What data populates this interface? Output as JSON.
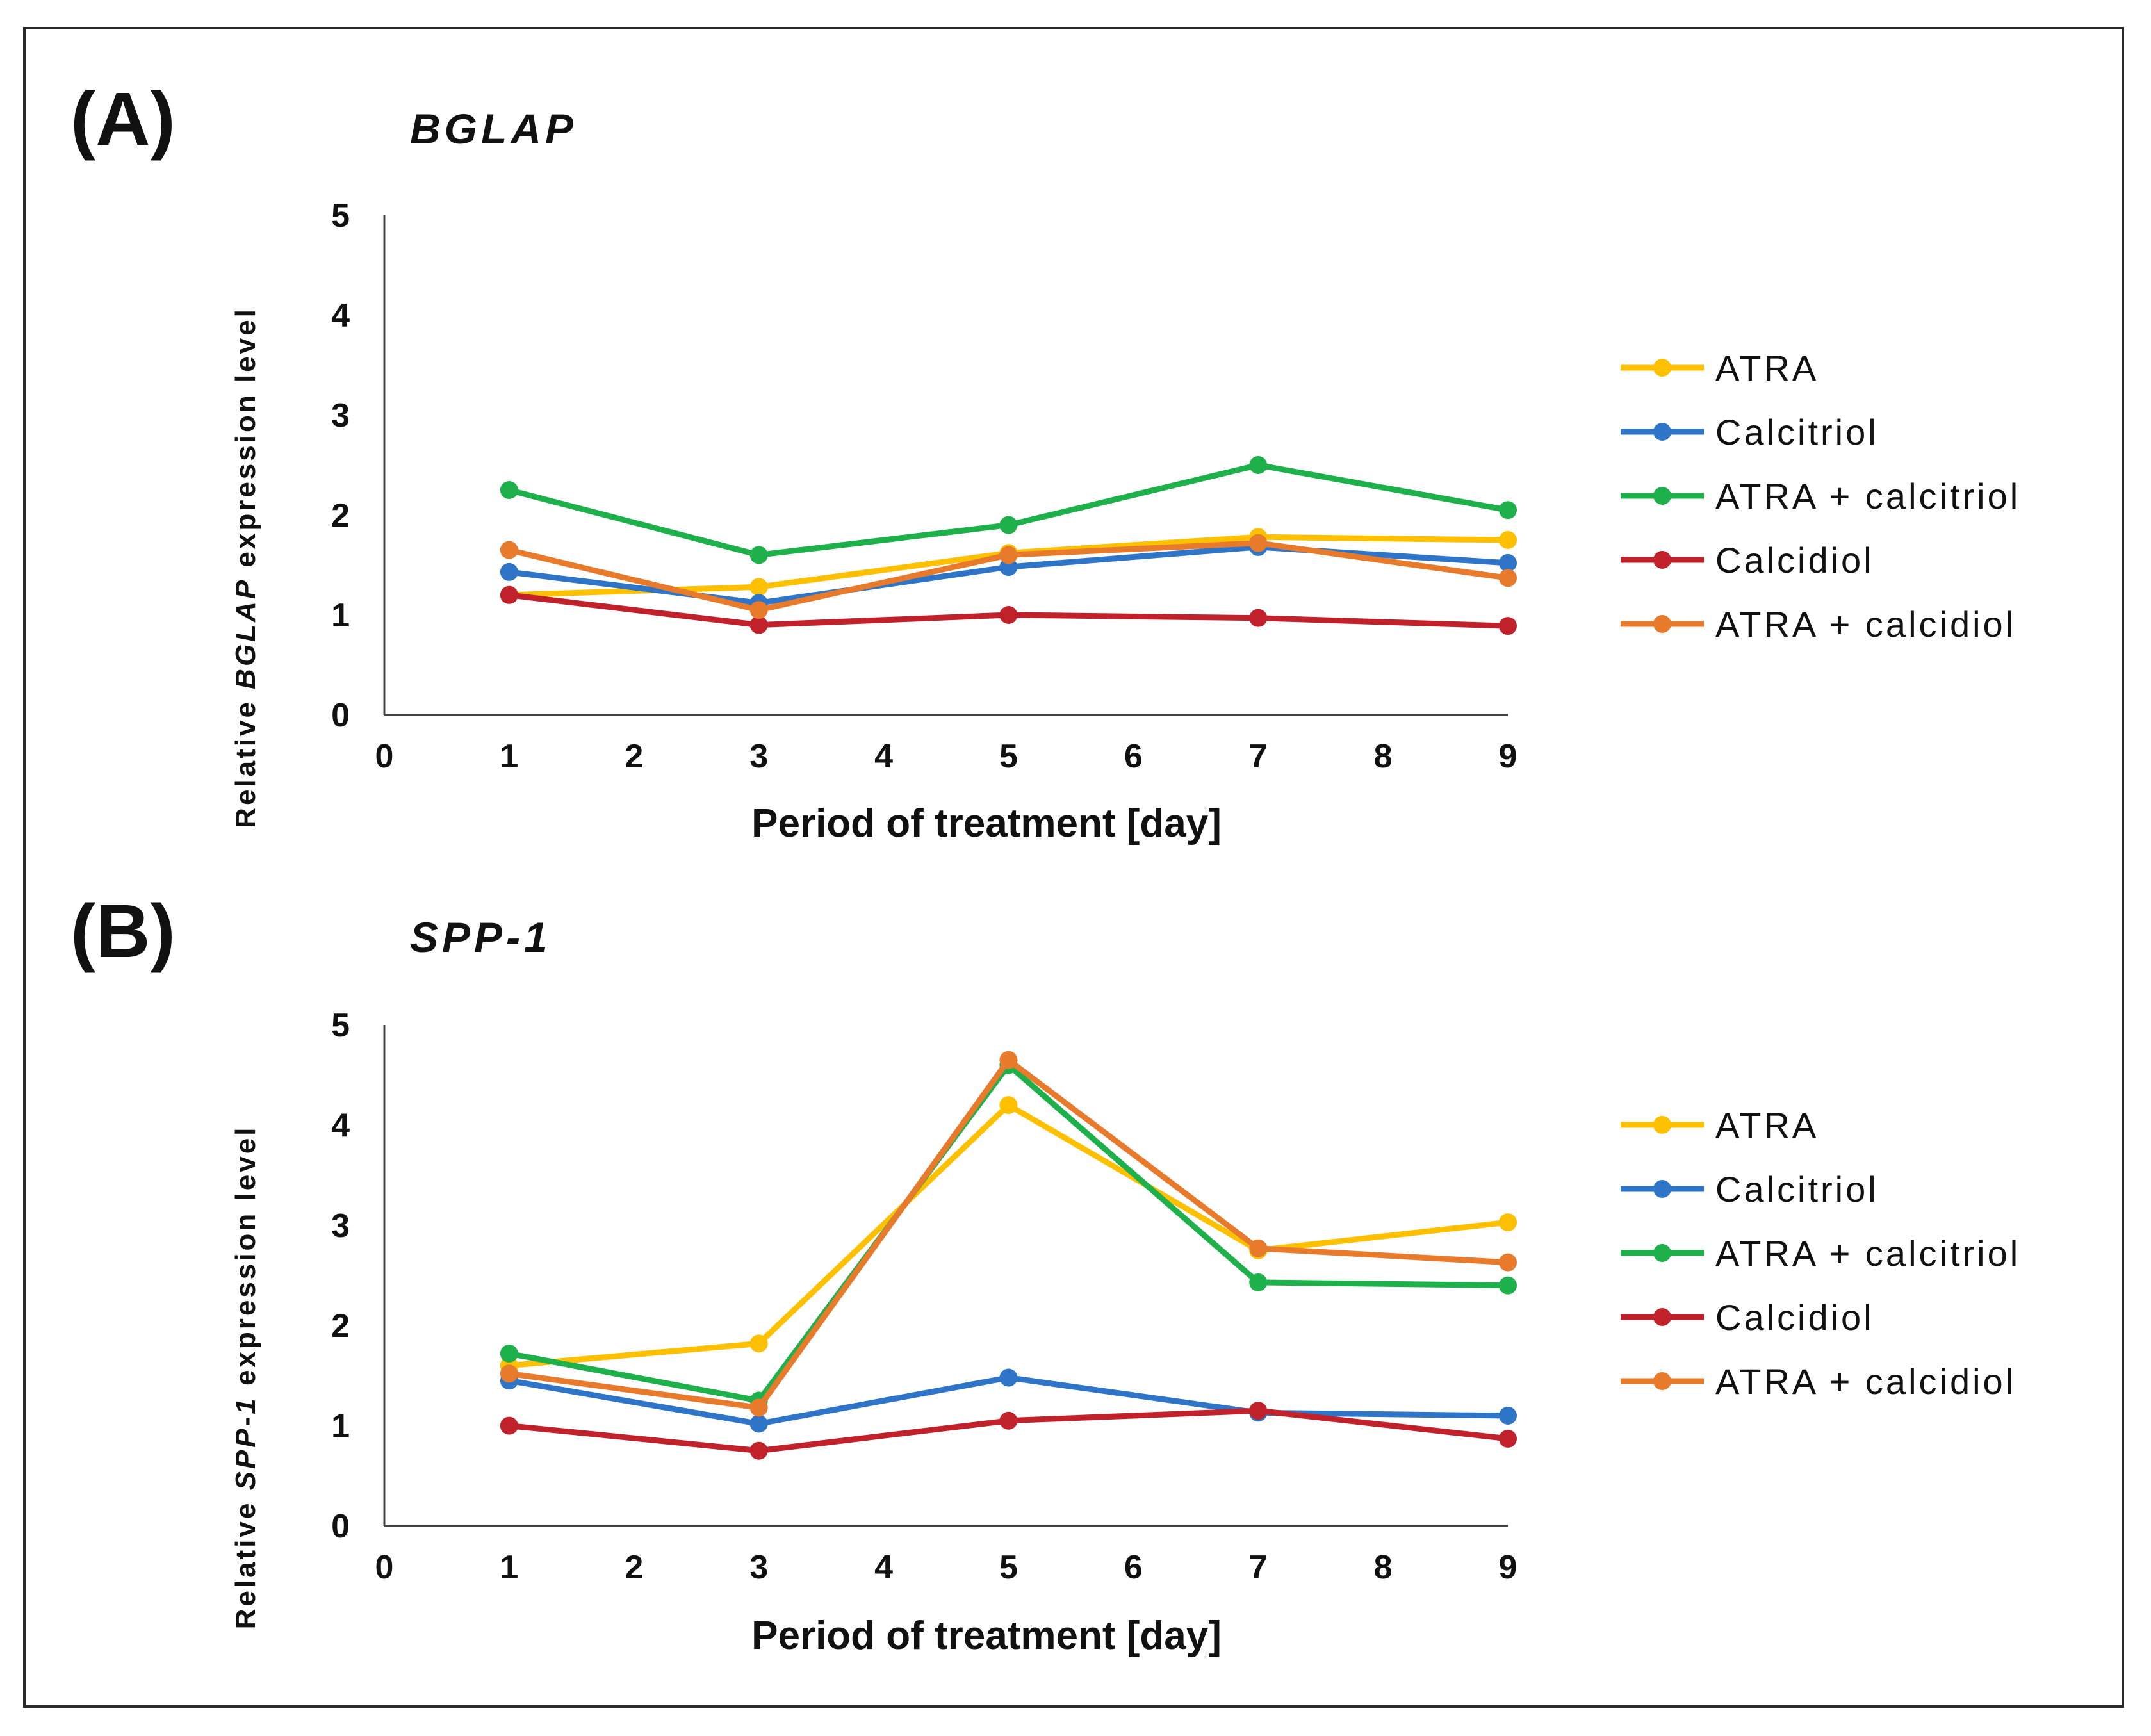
{
  "colors": {
    "ATRA": "#FFC000",
    "Calcitriol": "#2E75C8",
    "ATRA + calcitriol": "#1EB04B",
    "Calcidiol": "#C0212B",
    "ATRA + calcidiol": "#E87A2C"
  },
  "chart_data": [
    {
      "type": "line",
      "panel_label": "(A)",
      "title": "BGLAP",
      "xlabel": "Period of treatment [day]",
      "ylabel_prefix": "Relative ",
      "ylabel_gene": "BGLAP",
      "ylabel_suffix": " expression level",
      "xlim": [
        0,
        9
      ],
      "ylim": [
        0,
        5
      ],
      "xticks": [
        0,
        1,
        2,
        3,
        4,
        5,
        6,
        7,
        8,
        9
      ],
      "yticks": [
        0,
        1,
        2,
        3,
        4,
        5
      ],
      "x": [
        1,
        3,
        5,
        7,
        9
      ],
      "legend_position": "right",
      "series": [
        {
          "name": "ATRA",
          "values": [
            1.2,
            1.28,
            1.62,
            1.78,
            1.75
          ]
        },
        {
          "name": "Calcitriol",
          "values": [
            1.43,
            1.12,
            1.48,
            1.68,
            1.52
          ]
        },
        {
          "name": "ATRA + calcitriol",
          "values": [
            2.25,
            1.6,
            1.9,
            2.5,
            2.05
          ]
        },
        {
          "name": "Calcidiol",
          "values": [
            1.2,
            0.9,
            1.0,
            0.97,
            0.89
          ]
        },
        {
          "name": "ATRA + calcidiol",
          "values": [
            1.65,
            1.05,
            1.6,
            1.72,
            1.37
          ]
        }
      ]
    },
    {
      "type": "line",
      "panel_label": "(B)",
      "title": "SPP-1",
      "xlabel": "Period of treatment [day]",
      "ylabel_prefix": "Relative ",
      "ylabel_gene": "SPP-1",
      "ylabel_suffix": "  expression level",
      "xlim": [
        0,
        9
      ],
      "ylim": [
        0,
        5
      ],
      "xticks": [
        0,
        1,
        2,
        3,
        4,
        5,
        6,
        7,
        8,
        9
      ],
      "yticks": [
        0,
        1,
        2,
        3,
        4,
        5
      ],
      "x": [
        1,
        3,
        5,
        7,
        9
      ],
      "legend_position": "right",
      "series": [
        {
          "name": "ATRA",
          "values": [
            1.6,
            1.82,
            4.2,
            2.75,
            3.03
          ]
        },
        {
          "name": "Calcitriol",
          "values": [
            1.45,
            1.02,
            1.48,
            1.13,
            1.1
          ]
        },
        {
          "name": "ATRA + calcitriol",
          "values": [
            1.72,
            1.25,
            4.6,
            2.43,
            2.4
          ]
        },
        {
          "name": "Calcidiol",
          "values": [
            1.0,
            0.75,
            1.05,
            1.15,
            0.87
          ]
        },
        {
          "name": "ATRA + calcidiol",
          "values": [
            1.52,
            1.18,
            4.65,
            2.77,
            2.63
          ]
        }
      ]
    }
  ]
}
